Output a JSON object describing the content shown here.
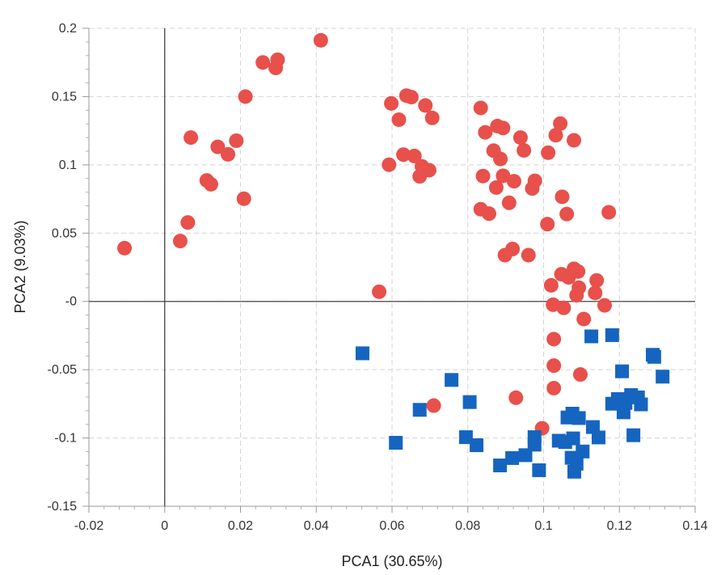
{
  "chart_data": {
    "type": "scatter",
    "title": "",
    "xlabel": "PCA1 (30.65%)",
    "ylabel": "PCA2 (9.03%)",
    "xlim": [
      -0.02,
      0.14
    ],
    "ylim": [
      -0.15,
      0.2
    ],
    "x_ticks": [
      "-0.02",
      "0",
      "0.02",
      "0.04",
      "0.06",
      "0.08",
      "0.1",
      "0.12",
      "0.14"
    ],
    "y_ticks": [
      "-0.15",
      "-0.1",
      "-0.05",
      "-0",
      "0.05",
      "0.1",
      "0.15",
      "0.2"
    ],
    "x_tick_values": [
      -0.02,
      0,
      0.02,
      0.04,
      0.06,
      0.08,
      0.1,
      0.12,
      0.14
    ],
    "y_tick_values": [
      -0.15,
      -0.1,
      -0.05,
      0,
      0.05,
      0.1,
      0.15,
      0.2
    ],
    "grid": true,
    "zero_lines": true,
    "legend": "none",
    "series": [
      {
        "marker": "circle",
        "color": "#e8504b",
        "points": [
          [
            -0.0106,
            0.039
          ],
          [
            0.0041,
            0.0442
          ],
          [
            0.0061,
            0.0578
          ],
          [
            0.0069,
            0.12
          ],
          [
            0.0111,
            0.0886
          ],
          [
            0.0122,
            0.0858
          ],
          [
            0.014,
            0.1132
          ],
          [
            0.0167,
            0.1077
          ],
          [
            0.0189,
            0.1177
          ],
          [
            0.0209,
            0.0752
          ],
          [
            0.0213,
            0.15
          ],
          [
            0.0259,
            0.175
          ],
          [
            0.0293,
            0.171
          ],
          [
            0.0298,
            0.177
          ],
          [
            0.0412,
            0.1912
          ],
          [
            0.0566,
            0.0071
          ],
          [
            0.0592,
            0.1001
          ],
          [
            0.0598,
            0.145
          ],
          [
            0.0618,
            0.1331
          ],
          [
            0.063,
            0.1075
          ],
          [
            0.0638,
            0.1507
          ],
          [
            0.0651,
            0.1496
          ],
          [
            0.0659,
            0.1065
          ],
          [
            0.0673,
            0.0916
          ],
          [
            0.0679,
            0.0989
          ],
          [
            0.0688,
            0.1435
          ],
          [
            0.0698,
            0.0961
          ],
          [
            0.0706,
            0.1344
          ],
          [
            0.071,
            -0.0763
          ],
          [
            0.0834,
            0.0675
          ],
          [
            0.0834,
            0.1417
          ],
          [
            0.084,
            0.0918
          ],
          [
            0.0846,
            0.1238
          ],
          [
            0.0856,
            0.0643
          ],
          [
            0.0868,
            0.1104
          ],
          [
            0.0875,
            0.0834
          ],
          [
            0.0878,
            0.1284
          ],
          [
            0.0886,
            0.1043
          ],
          [
            0.0893,
            0.092
          ],
          [
            0.0893,
            0.127
          ],
          [
            0.0898,
            0.0339
          ],
          [
            0.0909,
            0.0722
          ],
          [
            0.0918,
            0.0384
          ],
          [
            0.0922,
            0.088
          ],
          [
            0.0927,
            -0.0705
          ],
          [
            0.0939,
            0.12
          ],
          [
            0.0948,
            0.1106
          ],
          [
            0.096,
            0.0339
          ],
          [
            0.097,
            0.0827
          ],
          [
            0.0977,
            0.0883
          ],
          [
            0.0996,
            -0.0929
          ],
          [
            0.101,
            0.0566
          ],
          [
            0.1012,
            0.1089
          ],
          [
            0.102,
            0.0118
          ],
          [
            0.1025,
            -0.0024
          ],
          [
            0.1027,
            -0.0276
          ],
          [
            0.1027,
            -0.047
          ],
          [
            0.1027,
            -0.0635
          ],
          [
            0.1032,
            0.1217
          ],
          [
            0.1044,
            0.1302
          ],
          [
            0.1047,
            0.0199
          ],
          [
            0.1049,
            0.0766
          ],
          [
            0.1053,
            -0.0047
          ],
          [
            0.1061,
            0.064
          ],
          [
            0.1066,
            0.0176
          ],
          [
            0.108,
            0.0239
          ],
          [
            0.108,
            0.118
          ],
          [
            0.1087,
            0.0045
          ],
          [
            0.1091,
            0.0219
          ],
          [
            0.1093,
            0.0101
          ],
          [
            0.1097,
            -0.0535
          ],
          [
            0.1106,
            -0.0129
          ],
          [
            0.1136,
            0.0062
          ],
          [
            0.114,
            0.0154
          ],
          [
            0.1161,
            -0.0029
          ],
          [
            0.1172,
            0.0653
          ]
        ]
      },
      {
        "marker": "square",
        "color": "#1565c0",
        "points": [
          [
            0.0522,
            -0.038
          ],
          [
            0.061,
            -0.1035
          ],
          [
            0.0673,
            -0.0794
          ],
          [
            0.0757,
            -0.0575
          ],
          [
            0.0795,
            -0.0994
          ],
          [
            0.0805,
            -0.0737
          ],
          [
            0.0823,
            -0.1053
          ],
          [
            0.0885,
            -0.1201
          ],
          [
            0.0917,
            -0.1147
          ],
          [
            0.0952,
            -0.1126
          ],
          [
            0.0976,
            -0.1049
          ],
          [
            0.0976,
            -0.0994
          ],
          [
            0.0988,
            -0.1236
          ],
          [
            0.104,
            -0.102
          ],
          [
            0.1057,
            -0.103
          ],
          [
            0.1063,
            -0.085
          ],
          [
            0.1074,
            -0.1145
          ],
          [
            0.1076,
            -0.0822
          ],
          [
            0.1078,
            -0.1003
          ],
          [
            0.1081,
            -0.1247
          ],
          [
            0.1087,
            -0.1188
          ],
          [
            0.1093,
            -0.0854
          ],
          [
            0.1103,
            -0.1099
          ],
          [
            0.1126,
            -0.0256
          ],
          [
            0.113,
            -0.092
          ],
          [
            0.1145,
            -0.0996
          ],
          [
            0.1181,
            -0.0247
          ],
          [
            0.1181,
            -0.0749
          ],
          [
            0.1196,
            -0.0715
          ],
          [
            0.1207,
            -0.0512
          ],
          [
            0.1211,
            -0.0812
          ],
          [
            0.1216,
            -0.0743
          ],
          [
            0.1231,
            -0.0686
          ],
          [
            0.1237,
            -0.098
          ],
          [
            0.1249,
            -0.0703
          ],
          [
            0.1257,
            -0.0754
          ],
          [
            0.1288,
            -0.0391
          ],
          [
            0.1292,
            -0.0406
          ],
          [
            0.1314,
            -0.0551
          ]
        ]
      }
    ]
  }
}
